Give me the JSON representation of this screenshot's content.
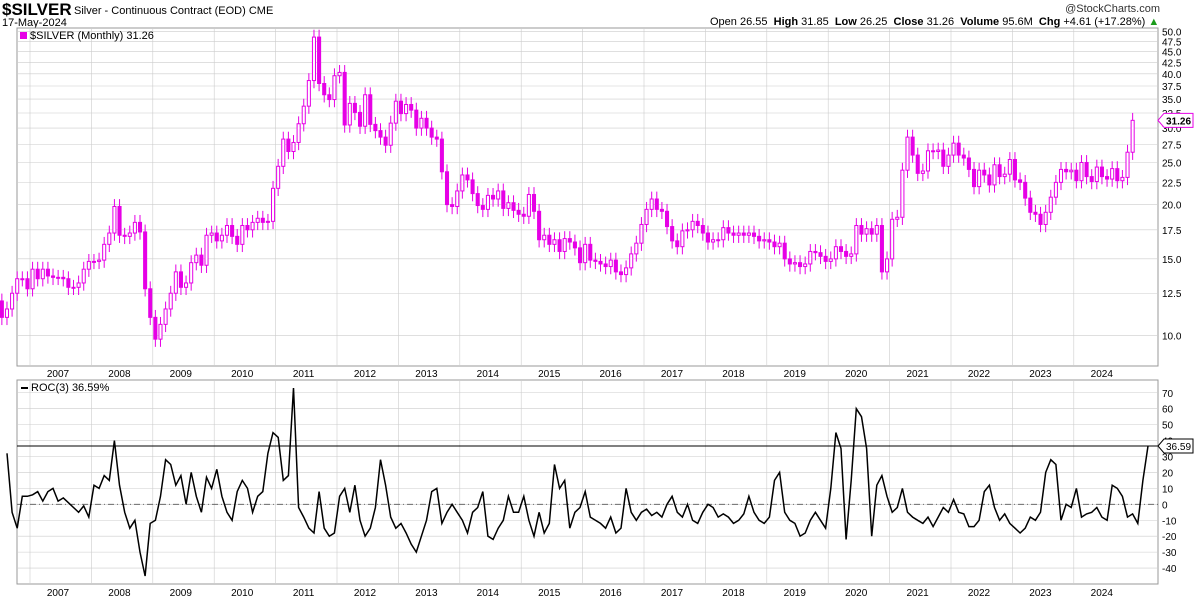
{
  "header": {
    "ticker": "$SILVER",
    "description": "Silver - Continuous Contract (EOD)",
    "exchange": "CME",
    "date": "17-May-2024",
    "copyright": "@StockCharts.com",
    "ohlc": {
      "open_label": "Open",
      "open": "26.55",
      "high_label": "High",
      "high": "31.85",
      "low_label": "Low",
      "low": "26.25",
      "close_label": "Close",
      "close": "31.26",
      "volume_label": "Volume",
      "volume": "95.6M",
      "chg_label": "Chg",
      "chg": "+4.61 (+17.28%)",
      "chg_icon": "up-triangle-icon"
    }
  },
  "colors": {
    "candle": "#e600e6",
    "roc_line": "#000000",
    "grid": "#cccccc",
    "chg_up": "#1a9b1a"
  },
  "chart_data": [
    {
      "type": "candlestick",
      "legend": "$SILVER (Monthly) 31.26",
      "last_value_label": "31.26",
      "scale": "log",
      "ylim": [
        8.5,
        51
      ],
      "y_ticks": [
        "10.0",
        "12.5",
        "15.0",
        "17.5",
        "20.0",
        "22.5",
        "25.0",
        "27.5",
        "30.0",
        "32.5",
        "35.0",
        "37.5",
        "40.0",
        "42.5",
        "45.0",
        "47.5",
        "50.0"
      ],
      "x_ticks": [
        "2007",
        "2008",
        "2009",
        "2010",
        "2011",
        "2012",
        "2013",
        "2014",
        "2015",
        "2016",
        "2017",
        "2018",
        "2019",
        "2020",
        "2021",
        "2022",
        "2023",
        "2024"
      ],
      "start": "2006-05",
      "close": [
        11.3,
        12.0,
        11.0,
        11.5,
        12.5,
        13.5,
        13.5,
        12.8,
        14.2,
        13.5,
        14.2,
        13.7,
        13.6,
        13.6,
        13.5,
        12.9,
        12.9,
        13.2,
        14.2,
        14.8,
        14.8,
        14.9,
        16.2,
        17.2,
        19.8,
        17.0,
        16.9,
        17.2,
        18.2,
        17.3,
        12.8,
        11.0,
        9.8,
        10.6,
        11.5,
        12.5,
        14.0,
        12.9,
        13.2,
        14.7,
        15.3,
        14.5,
        17.0,
        17.2,
        16.5,
        17.0,
        17.9,
        16.9,
        16.2,
        17.9,
        17.5,
        18.2,
        18.6,
        18.2,
        18.3,
        21.8,
        24.5,
        28.3,
        26.5,
        27.8,
        30.7,
        33.7,
        38.6,
        48.6,
        38.0,
        35.8,
        34.9,
        39.6,
        40.3,
        30.5,
        34.2,
        32.6,
        30.3,
        35.8,
        30.6,
        29.6,
        28.6,
        27.4,
        30.8,
        34.6,
        32.4,
        34.0,
        33.0,
        30.0,
        31.6,
        30.0,
        28.6,
        28.3,
        23.8,
        20.0,
        19.8,
        21.5,
        23.4,
        22.8,
        21.2,
        19.9,
        19.5,
        21.0,
        20.6,
        21.5,
        19.6,
        20.2,
        19.4,
        19.0,
        18.8,
        21.1,
        19.3,
        16.6,
        17.0,
        16.2,
        16.6,
        15.6,
        16.7,
        16.4,
        15.9,
        14.7,
        16.2,
        14.9,
        14.8,
        14.6,
        14.4,
        14.9,
        14.0,
        13.8,
        14.3,
        15.4,
        16.3,
        18.0,
        19.5,
        20.6,
        19.5,
        19.3,
        17.8,
        16.5,
        16.0,
        17.4,
        17.5,
        18.3,
        17.9,
        17.2,
        16.4,
        16.6,
        16.6,
        17.7,
        17.2,
        17.0,
        17.2,
        17.0,
        17.2,
        16.9,
        16.5,
        16.6,
        16.4,
        16.0,
        16.3,
        15.0,
        14.6,
        14.7,
        14.4,
        14.6,
        15.6,
        15.5,
        15.2,
        14.8,
        15.0,
        16.0,
        15.6,
        15.2,
        15.4,
        17.9,
        17.1,
        17.6,
        17.1,
        17.9,
        14.0,
        15.0,
        18.5,
        18.7,
        24.0,
        28.6,
        26.0,
        23.6,
        23.9,
        26.6,
        26.5,
        26.7,
        24.5,
        26.0,
        27.7,
        26.0,
        25.6,
        24.1,
        22.0,
        24.0,
        23.4,
        22.2,
        24.7,
        23.2,
        23.5,
        25.4,
        22.8,
        22.5,
        20.7,
        19.2,
        19.0,
        18.0,
        19.2,
        20.8,
        22.5,
        24.1,
        23.8,
        24.0,
        22.7,
        25.0,
        23.2,
        22.6,
        24.4,
        23.2,
        22.9,
        24.2,
        22.7,
        23.1,
        26.4,
        31.26
      ],
      "ohlc_note": "monthly closes; open of each bar = prior close"
    },
    {
      "type": "line",
      "legend": "ROC(3) 36.59%",
      "last_value_label": "36.59",
      "ylim": [
        -50,
        78
      ],
      "y_ticks": [
        "-40",
        "-30",
        "-20",
        "-10",
        "0",
        "10",
        "20",
        "30",
        "40",
        "50",
        "60",
        "70"
      ],
      "reference_line": 36.59,
      "x_ticks": [
        "2007",
        "2008",
        "2009",
        "2010",
        "2011",
        "2012",
        "2013",
        "2014",
        "2015",
        "2016",
        "2017",
        "2018",
        "2019",
        "2020",
        "2021",
        "2022",
        "2023",
        "2024"
      ],
      "start": "2006-08",
      "series": [
        {
          "values": [
            32,
            -5,
            -15,
            5,
            5,
            6,
            8,
            2,
            8,
            10,
            2,
            4,
            1,
            -2,
            -5,
            -1,
            -8,
            12,
            10,
            18,
            15,
            40,
            12,
            -5,
            -15,
            -10,
            -30,
            -45,
            -12,
            -10,
            5,
            28,
            25,
            12,
            18,
            0,
            20,
            5,
            -5,
            17,
            10,
            22,
            5,
            -5,
            -10,
            8,
            15,
            10,
            -5,
            5,
            8,
            32,
            45,
            42,
            15,
            18,
            73,
            -2,
            -8,
            -15,
            -18,
            8,
            -15,
            -20,
            -18,
            5,
            10,
            -5,
            12,
            -10,
            -20,
            -15,
            -2,
            28,
            12,
            -8,
            -15,
            -12,
            -18,
            -25,
            -30,
            -20,
            -10,
            8,
            10,
            -12,
            -5,
            0,
            -5,
            -10,
            -18,
            -5,
            -2,
            8,
            -20,
            -22,
            -15,
            -10,
            5,
            -5,
            -5,
            5,
            -10,
            -20,
            -5,
            -18,
            -12,
            25,
            10,
            15,
            -15,
            -5,
            -2,
            8,
            -8,
            -10,
            -12,
            -15,
            -8,
            -18,
            -15,
            10,
            -5,
            -10,
            -5,
            -3,
            -7,
            -5,
            -8,
            0,
            5,
            -5,
            -8,
            0,
            -10,
            -12,
            -5,
            0,
            -2,
            -8,
            -6,
            -8,
            -12,
            -10,
            -6,
            5,
            -5,
            -10,
            -12,
            -8,
            15,
            20,
            -5,
            -10,
            -12,
            -20,
            -18,
            -10,
            -5,
            -10,
            -15,
            10,
            45,
            35,
            -22,
            15,
            60,
            55,
            35,
            -20,
            12,
            18,
            5,
            -5,
            -2,
            10,
            -5,
            -8,
            -10,
            -12,
            -8,
            -14,
            -8,
            -2,
            -5,
            3,
            -5,
            -6,
            -14,
            -14,
            -10,
            8,
            12,
            -2,
            -10,
            -6,
            -12,
            -15,
            -18,
            -15,
            -8,
            -10,
            -5,
            20,
            28,
            25,
            -10,
            0,
            -2,
            10,
            -8,
            -6,
            -5,
            -2,
            -8,
            -10,
            12,
            10,
            5,
            -8,
            -6,
            -12,
            15,
            36.59
          ]
        }
      ]
    }
  ]
}
